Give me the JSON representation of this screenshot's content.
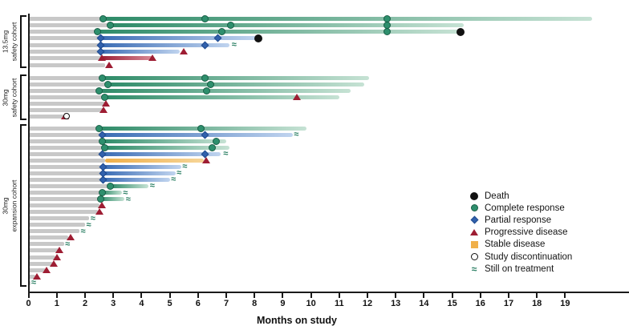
{
  "axis": {
    "title": "Months on study",
    "tick_min": 0,
    "tick_max": 19,
    "tick_step": 1
  },
  "legend": [
    {
      "type": "death",
      "label": "Death"
    },
    {
      "type": "cr",
      "label": "Complete response"
    },
    {
      "type": "pr",
      "label": "Partial response"
    },
    {
      "type": "pd",
      "label": "Progressive disease"
    },
    {
      "type": "sd",
      "label": "Stable disease"
    },
    {
      "type": "disc",
      "label": "Study discontinuation"
    },
    {
      "type": "arrow",
      "label": "Still on treatment"
    }
  ],
  "colors": {
    "green": "#2e8b68",
    "green_light": "#c6e2d4",
    "cr_fill": "#2e8f6d",
    "cr_edge": "#1a5f47",
    "blue": "#3a6cb4",
    "blue_light": "#c0d4ef",
    "pr_fill": "#3161ad",
    "pr_edge": "#1f4a8e",
    "red": "#9c2138",
    "red_light": "#d88995",
    "pd_fill": "#9e1d33",
    "orange": "#f0b04a",
    "orange_light": "#f6d598",
    "gray": "#c8c8c8",
    "death": "#111111",
    "tilde": "#2a7f63"
  },
  "chart_data": {
    "type": "swimmer",
    "xlabel": "Months on study",
    "xlim": [
      0,
      19
    ],
    "cohorts": [
      {
        "label_line1": "13.5mg",
        "label_line2": "safety cohort",
        "rows": [
          {
            "lead": 2.65,
            "seg": {
              "c": "green",
              "from": 2.65,
              "to": 19.95
            },
            "mk": [
              {
                "m": 2.65,
                "t": "cr"
              },
              {
                "m": 6.25,
                "t": "cr"
              },
              {
                "m": 12.7,
                "t": "cr"
              }
            ]
          },
          {
            "lead": 2.9,
            "seg": {
              "c": "green",
              "from": 2.9,
              "to": 15.4
            },
            "mk": [
              {
                "m": 2.9,
                "t": "cr"
              },
              {
                "m": 7.15,
                "t": "cr"
              },
              {
                "m": 12.7,
                "t": "cr"
              }
            ]
          },
          {
            "lead": 2.45,
            "seg": {
              "c": "green",
              "from": 2.45,
              "to": 15.3
            },
            "mk": [
              {
                "m": 2.45,
                "t": "cr"
              },
              {
                "m": 6.85,
                "t": "cr"
              },
              {
                "m": 12.7,
                "t": "cr"
              },
              {
                "m": 15.3,
                "t": "death"
              }
            ]
          },
          {
            "lead": 2.55,
            "seg": {
              "c": "blue",
              "from": 2.55,
              "to": 8.1
            },
            "mk": [
              {
                "m": 2.55,
                "t": "pr"
              },
              {
                "m": 6.7,
                "t": "pr"
              },
              {
                "m": 8.15,
                "t": "death"
              }
            ]
          },
          {
            "lead": 2.55,
            "seg": {
              "c": "blue",
              "from": 2.55,
              "to": 7.1
            },
            "mk": [
              {
                "m": 2.55,
                "t": "pr"
              },
              {
                "m": 6.25,
                "t": "pr"
              },
              {
                "m": 7.25,
                "t": "arrow"
              }
            ]
          },
          {
            "lead": 2.55,
            "seg": {
              "c": "blue",
              "from": 2.55,
              "to": 5.35
            },
            "mk": [
              {
                "m": 2.55,
                "t": "pr"
              },
              {
                "m": 5.5,
                "t": "pd"
              }
            ]
          },
          {
            "lead": 2.6,
            "seg": {
              "c": "red",
              "from": 2.6,
              "to": 4.4
            },
            "mk": [
              {
                "m": 2.6,
                "t": "pd"
              },
              {
                "m": 4.4,
                "t": "pd"
              }
            ]
          },
          {
            "lead": 2.7,
            "seg": null,
            "mk": [
              {
                "m": 2.85,
                "t": "pd"
              }
            ]
          }
        ]
      },
      {
        "label_line1": "30mg",
        "label_line2": "safety cohort",
        "rows": [
          {
            "lead": 2.6,
            "seg": {
              "c": "green",
              "from": 2.6,
              "to": 12.05
            },
            "mk": [
              {
                "m": 2.6,
                "t": "cr"
              },
              {
                "m": 6.25,
                "t": "cr"
              }
            ]
          },
          {
            "lead": 2.8,
            "seg": {
              "c": "green",
              "from": 2.8,
              "to": 11.9
            },
            "mk": [
              {
                "m": 2.8,
                "t": "cr"
              },
              {
                "m": 6.45,
                "t": "cr"
              }
            ]
          },
          {
            "lead": 2.5,
            "seg": {
              "c": "green",
              "from": 2.5,
              "to": 11.4
            },
            "mk": [
              {
                "m": 2.5,
                "t": "cr"
              },
              {
                "m": 6.3,
                "t": "cr"
              }
            ]
          },
          {
            "lead": 2.7,
            "seg": {
              "c": "green",
              "from": 2.7,
              "to": 11.0
            },
            "mk": [
              {
                "m": 2.7,
                "t": "cr"
              },
              {
                "m": 9.5,
                "t": "pd"
              }
            ]
          },
          {
            "lead": 2.75,
            "seg": null,
            "mk": [
              {
                "m": 2.75,
                "t": "pd"
              }
            ]
          },
          {
            "lead": 2.65,
            "seg": null,
            "mk": [
              {
                "m": 2.65,
                "t": "pd"
              }
            ]
          },
          {
            "lead": 1.25,
            "seg": null,
            "mk": [
              {
                "m": 1.3,
                "t": "pd"
              },
              {
                "m": 1.35,
                "t": "disc"
              }
            ]
          }
        ]
      },
      {
        "label_line1": "30mg",
        "label_line2": "expansion cohort",
        "rows": [
          {
            "lead": 2.5,
            "seg": {
              "c": "green",
              "from": 2.5,
              "to": 9.85
            },
            "mk": [
              {
                "m": 2.5,
                "t": "cr"
              },
              {
                "m": 6.1,
                "t": "cr"
              }
            ]
          },
          {
            "lead": 2.6,
            "seg": {
              "c": "blue",
              "from": 2.6,
              "to": 9.35
            },
            "mk": [
              {
                "m": 2.6,
                "t": "pr"
              },
              {
                "m": 6.25,
                "t": "pr"
              },
              {
                "m": 9.45,
                "t": "arrow"
              }
            ]
          },
          {
            "lead": 2.6,
            "seg": {
              "c": "green",
              "from": 2.6,
              "to": 7.0
            },
            "mk": [
              {
                "m": 2.6,
                "t": "cr"
              },
              {
                "m": 6.65,
                "t": "cr"
              }
            ]
          },
          {
            "lead": 2.7,
            "seg": {
              "c": "green",
              "from": 2.7,
              "to": 7.1
            },
            "mk": [
              {
                "m": 2.7,
                "t": "cr"
              },
              {
                "m": 6.5,
                "t": "cr"
              }
            ]
          },
          {
            "lead": 2.6,
            "seg": {
              "c": "blue",
              "from": 2.6,
              "to": 6.8
            },
            "mk": [
              {
                "m": 2.6,
                "t": "pr"
              },
              {
                "m": 6.25,
                "t": "pr"
              },
              {
                "m": 6.95,
                "t": "arrow"
              }
            ]
          },
          {
            "lead": 2.7,
            "seg": {
              "c": "orange",
              "from": 2.7,
              "to": 6.2
            },
            "mk": [
              {
                "m": 6.3,
                "t": "pd"
              }
            ]
          },
          {
            "lead": 2.65,
            "seg": {
              "c": "blue",
              "from": 2.65,
              "to": 5.4
            },
            "mk": [
              {
                "m": 2.65,
                "t": "pr"
              },
              {
                "m": 5.5,
                "t": "arrow"
              }
            ]
          },
          {
            "lead": 2.65,
            "seg": {
              "c": "blue",
              "from": 2.65,
              "to": 5.2
            },
            "mk": [
              {
                "m": 2.65,
                "t": "pr"
              },
              {
                "m": 5.3,
                "t": "arrow"
              }
            ]
          },
          {
            "lead": 2.65,
            "seg": {
              "c": "blue",
              "from": 2.65,
              "to": 5.0
            },
            "mk": [
              {
                "m": 2.65,
                "t": "pr"
              },
              {
                "m": 5.1,
                "t": "arrow"
              }
            ]
          },
          {
            "lead": 2.9,
            "seg": {
              "c": "green",
              "from": 2.9,
              "to": 4.25
            },
            "mk": [
              {
                "m": 2.9,
                "t": "cr"
              },
              {
                "m": 4.35,
                "t": "arrow"
              }
            ]
          },
          {
            "lead": 2.6,
            "seg": {
              "c": "green",
              "from": 2.6,
              "to": 3.3
            },
            "mk": [
              {
                "m": 2.6,
                "t": "cr"
              },
              {
                "m": 3.4,
                "t": "arrow"
              }
            ]
          },
          {
            "lead": 2.55,
            "seg": {
              "c": "green",
              "from": 2.55,
              "to": 3.4
            },
            "mk": [
              {
                "m": 2.55,
                "t": "cr"
              },
              {
                "m": 3.5,
                "t": "arrow"
              }
            ]
          },
          {
            "lead": 2.5,
            "seg": null,
            "mk": [
              {
                "m": 2.6,
                "t": "pd"
              }
            ]
          },
          {
            "lead": 2.45,
            "seg": null,
            "mk": [
              {
                "m": 2.5,
                "t": "pd"
              }
            ]
          },
          {
            "lead": 2.15,
            "seg": null,
            "mk": [
              {
                "m": 2.25,
                "t": "arrow"
              }
            ]
          },
          {
            "lead": 2.0,
            "seg": null,
            "mk": [
              {
                "m": 2.1,
                "t": "arrow"
              }
            ]
          },
          {
            "lead": 1.8,
            "seg": null,
            "mk": [
              {
                "m": 1.9,
                "t": "arrow"
              }
            ]
          },
          {
            "lead": 1.4,
            "seg": null,
            "mk": [
              {
                "m": 1.48,
                "t": "pd"
              }
            ]
          },
          {
            "lead": 1.25,
            "seg": null,
            "mk": [
              {
                "m": 1.35,
                "t": "arrow"
              }
            ]
          },
          {
            "lead": 1.05,
            "seg": null,
            "mk": [
              {
                "m": 1.1,
                "t": "pd"
              }
            ]
          },
          {
            "lead": 0.95,
            "seg": null,
            "mk": [
              {
                "m": 1.0,
                "t": "pd"
              }
            ]
          },
          {
            "lead": 0.85,
            "seg": null,
            "mk": [
              {
                "m": 0.9,
                "t": "pd"
              }
            ]
          },
          {
            "lead": 0.6,
            "seg": null,
            "mk": [
              {
                "m": 0.65,
                "t": "pd"
              }
            ]
          },
          {
            "lead": 0.25,
            "seg": null,
            "mk": [
              {
                "m": 0.3,
                "t": "pd"
              }
            ]
          },
          {
            "lead": 0.08,
            "seg": null,
            "mk": [
              {
                "m": 0.15,
                "t": "arrow"
              }
            ]
          }
        ]
      }
    ]
  }
}
